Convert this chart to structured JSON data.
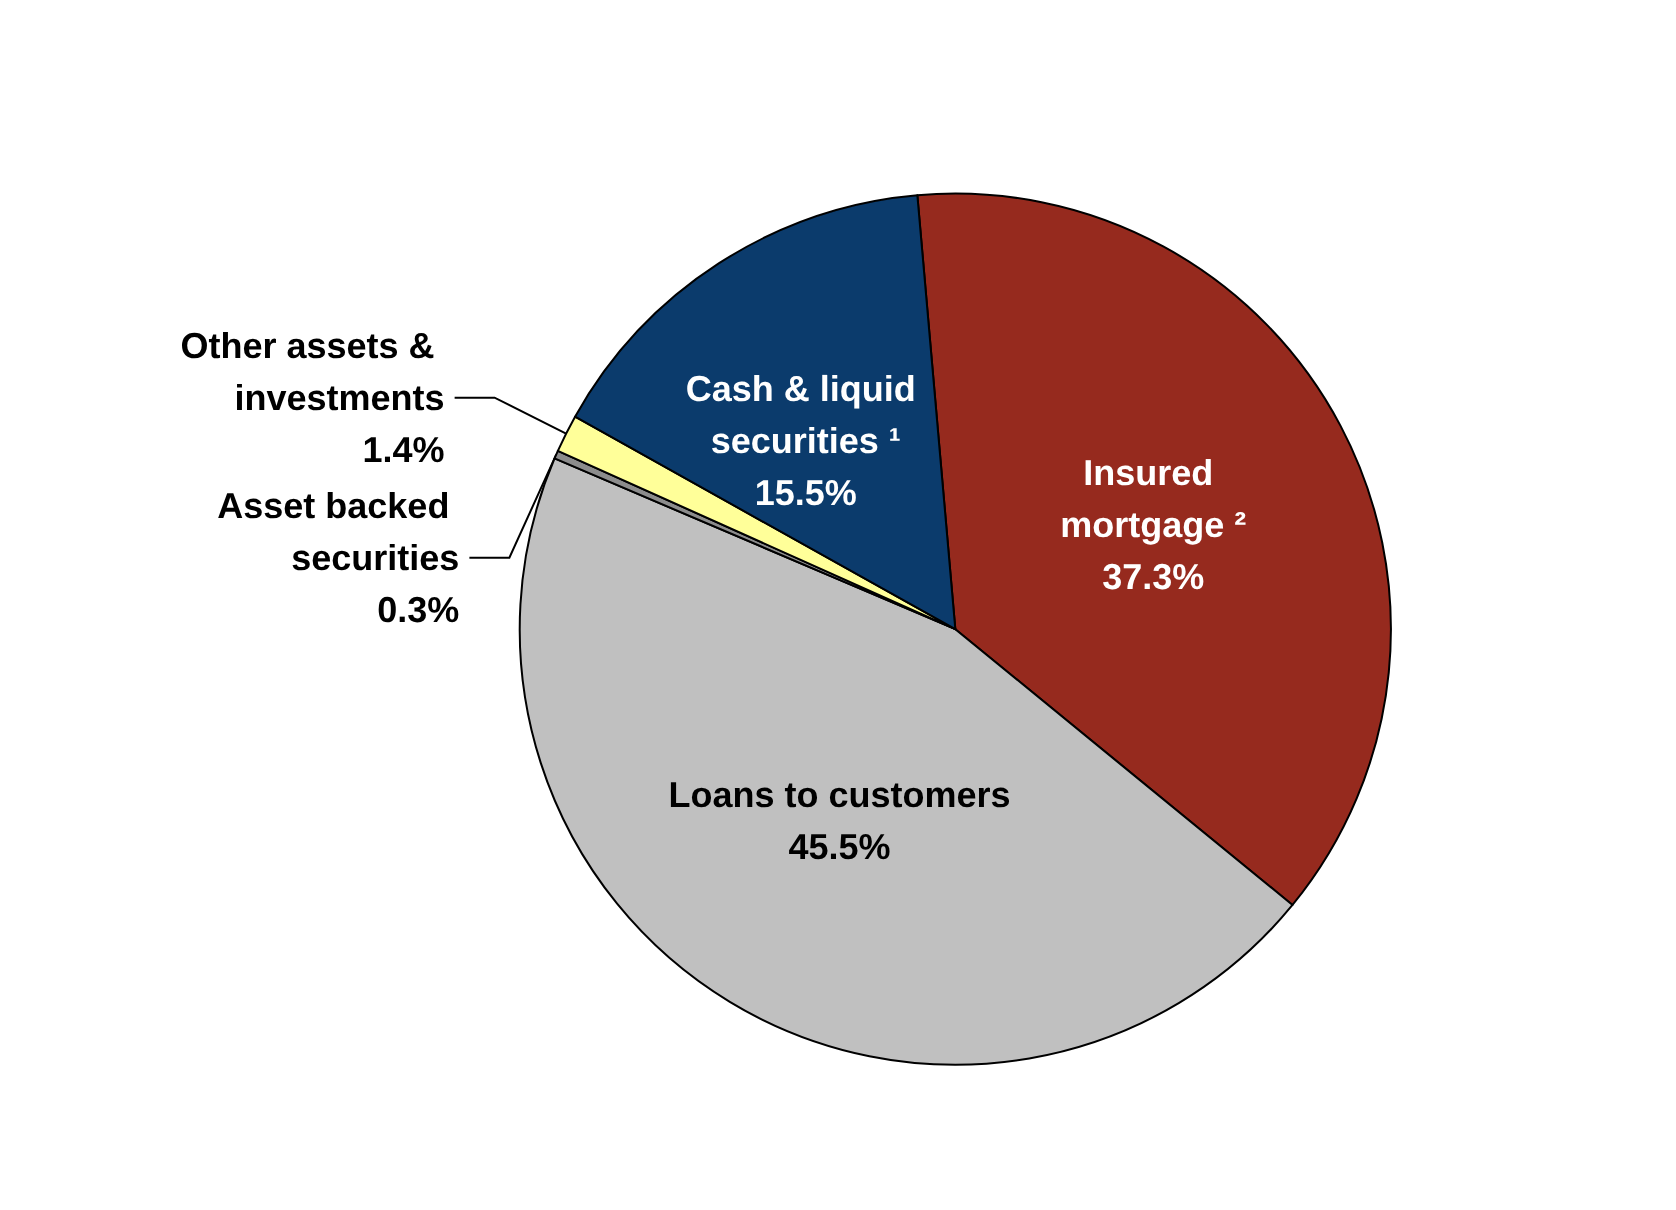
{
  "chart_data": {
    "type": "pie",
    "categories": [
      "Insured mortgage ²",
      "Loans to customers",
      "Asset backed securities",
      "Other assets & investments",
      "Cash & liquid securities ¹"
    ],
    "values": [
      37.3,
      45.5,
      0.3,
      1.4,
      15.5
    ],
    "colors": [
      "#962a1e",
      "#c0c0c0",
      "#8c8c8c",
      "#ffff99",
      "#0b3b6c"
    ],
    "value_labels": [
      "37.3%",
      "45.5%",
      "0.3%",
      "1.4%",
      "15.5%"
    ],
    "legend": false
  }
}
